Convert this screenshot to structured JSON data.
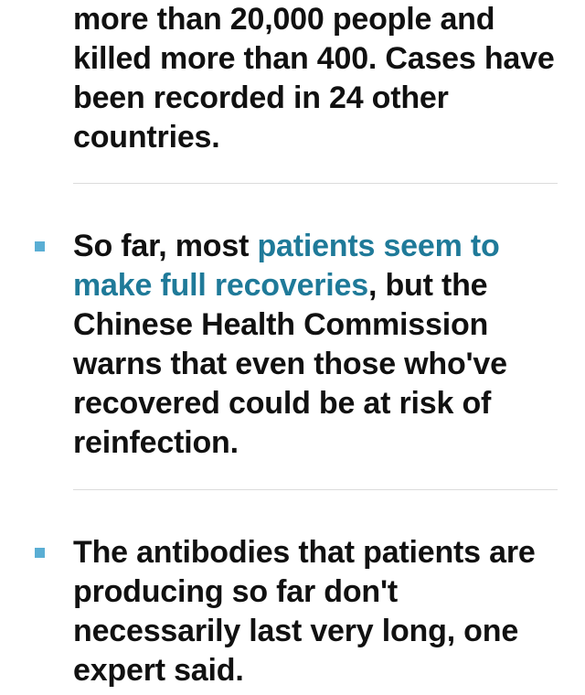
{
  "article": {
    "lead_text": "more than 20,000 people and killed more than 400. Cases have been recorded in 24 other countries.",
    "accent_color": "#5aaed4",
    "link_color": "#1f7a99",
    "bullets": [
      {
        "prefix": "So far, most ",
        "link": "patients seem to make full recoveries",
        "suffix": ", but the Chinese Health Commission warns that even those who've recovered could be at risk of reinfection."
      },
      {
        "text": "The antibodies that patients are producing so far don't necessarily last very long, one expert said."
      }
    ]
  }
}
